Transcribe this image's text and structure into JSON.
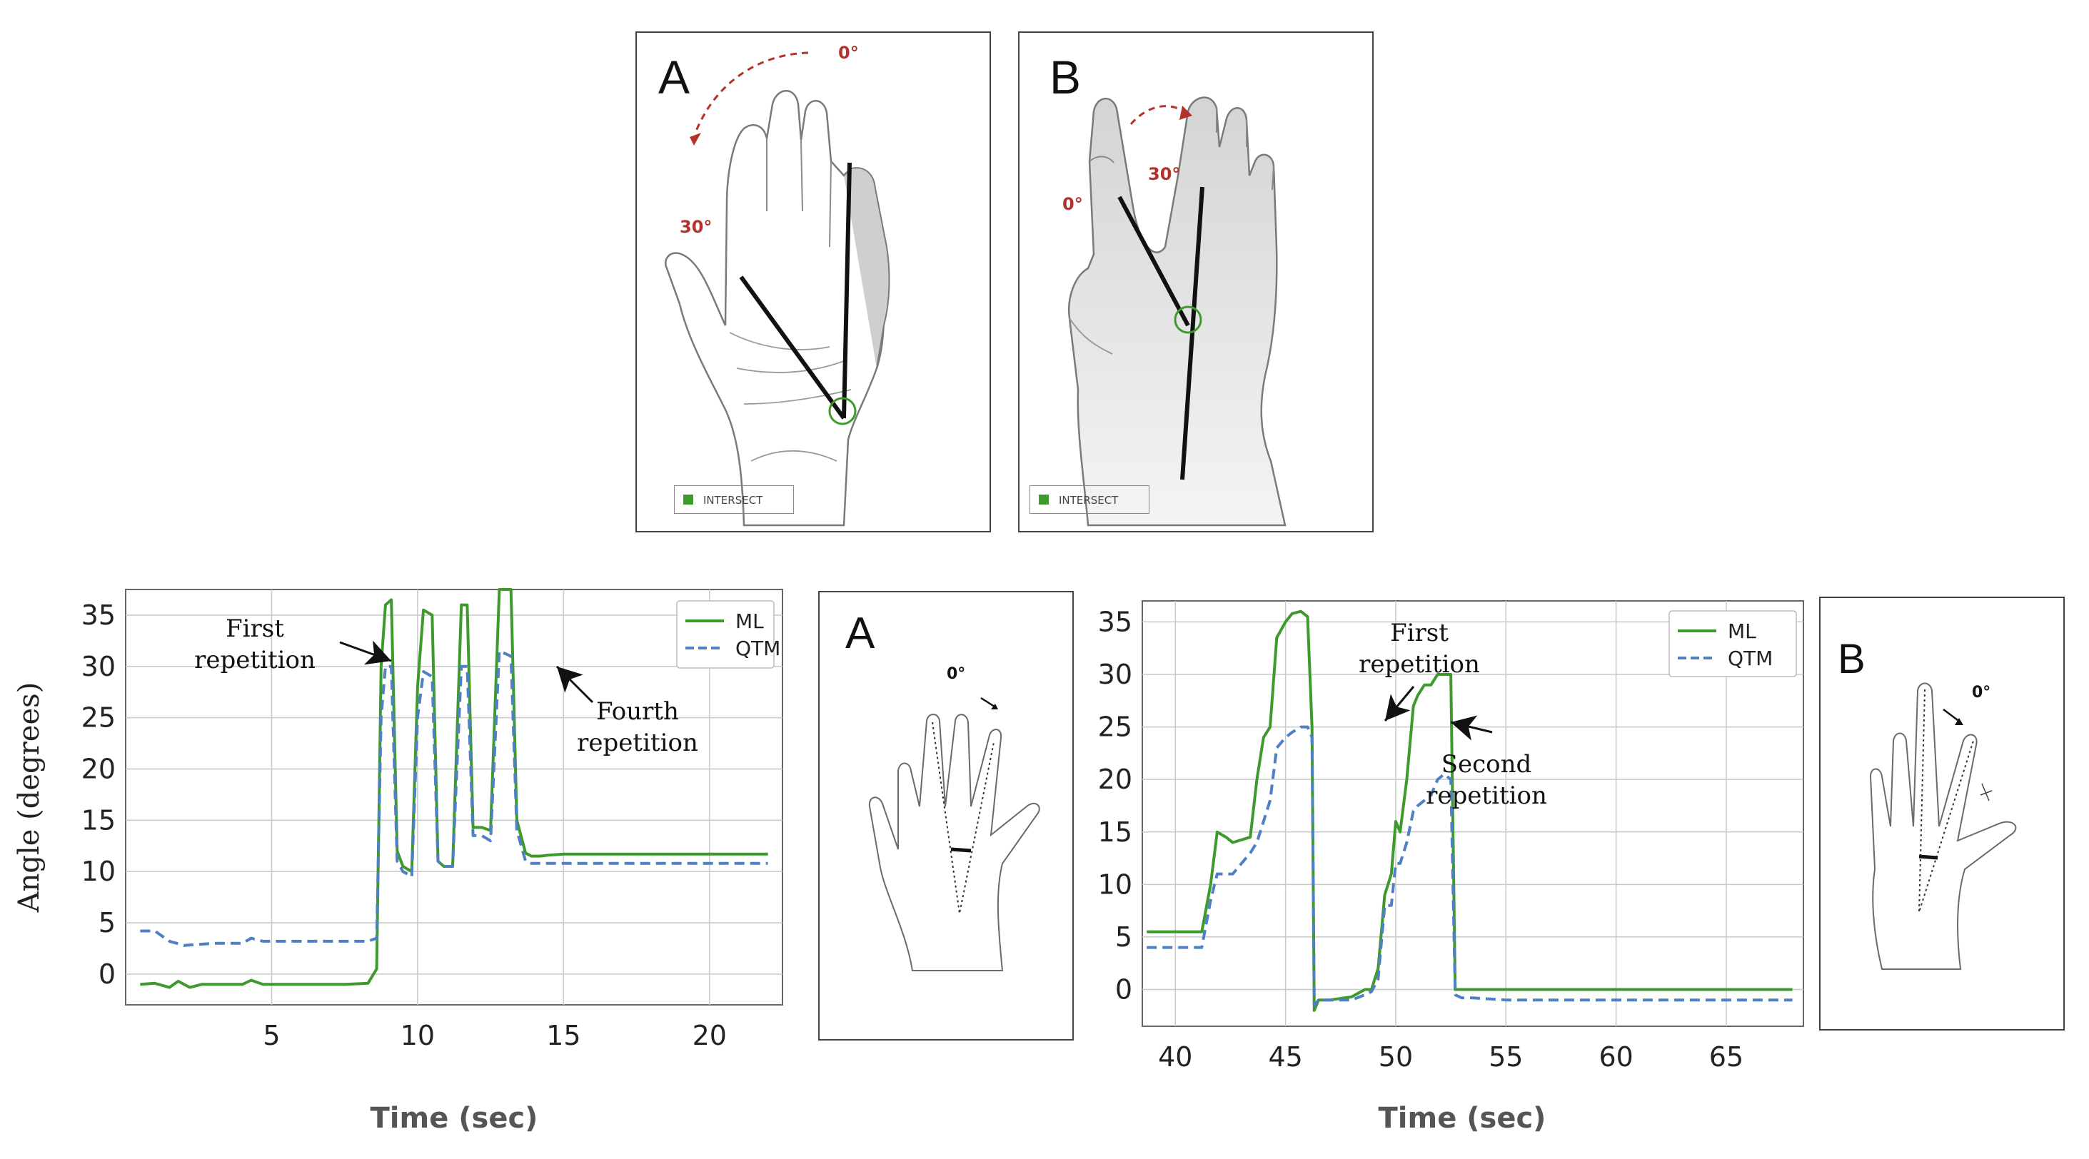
{
  "top_panels": [
    {
      "letter": "A",
      "angle_start": "0°",
      "angle_end": "30°",
      "legend": "INTERSECT"
    },
    {
      "letter": "B",
      "angle_start": "0°",
      "angle_end": "30°",
      "legend": "INTERSECT"
    }
  ],
  "insets": [
    {
      "letter": "A",
      "angle": "0°"
    },
    {
      "letter": "B",
      "angle": "0°"
    }
  ],
  "colors": {
    "ml": "#3f9a2e",
    "qtm": "#4f7fc4",
    "angle_marker": "#b5322a",
    "intersect": "#3f9a2e"
  },
  "chart_data": [
    {
      "type": "line",
      "xlabel": "Time (sec)",
      "ylabel": "Angle (degrees)",
      "xlim": [
        0,
        22.5
      ],
      "ylim": [
        -3,
        37.5
      ],
      "xticks": [
        5,
        10,
        15,
        20
      ],
      "yticks": [
        0,
        5,
        10,
        15,
        20,
        25,
        30,
        35
      ],
      "grid": true,
      "legend_position": "top-right",
      "annotations": [
        {
          "text": [
            "First",
            "repetition"
          ]
        },
        {
          "text": [
            "Fourth",
            "repetition"
          ]
        }
      ],
      "series": [
        {
          "name": "ML",
          "style": "solid",
          "x": [
            0.5,
            1,
            1.5,
            1.8,
            2.2,
            2.6,
            3,
            4,
            4.3,
            4.7,
            5.5,
            6.5,
            7.5,
            8.3,
            8.6,
            8.75,
            8.9,
            9.1,
            9.3,
            9.5,
            9.8,
            10,
            10.2,
            10.5,
            10.7,
            10.9,
            11.2,
            11.5,
            11.7,
            11.9,
            12.2,
            12.5,
            12.8,
            13.2,
            13.4,
            13.7,
            13.9,
            14.2,
            14.5,
            15,
            16,
            17,
            18,
            19,
            20,
            21,
            22
          ],
          "y": [
            -1,
            -0.9,
            -1.3,
            -0.7,
            -1.3,
            -1,
            -1,
            -1,
            -0.6,
            -1,
            -1,
            -1,
            -1,
            -0.9,
            0.5,
            30,
            36,
            36.5,
            12,
            10.5,
            10,
            28,
            35.5,
            35,
            11,
            10.5,
            10.5,
            36,
            36,
            14.3,
            14.3,
            14,
            37.5,
            37.5,
            15,
            11.8,
            11.5,
            11.5,
            11.6,
            11.7,
            11.7,
            11.7,
            11.7,
            11.7,
            11.7,
            11.7,
            11.7
          ]
        },
        {
          "name": "QTM",
          "style": "dashed",
          "x": [
            0.5,
            1,
            1.5,
            2,
            3,
            4,
            4.3,
            4.7,
            5.5,
            6.5,
            7.5,
            8.3,
            8.6,
            8.75,
            8.9,
            9.1,
            9.3,
            9.5,
            9.8,
            10,
            10.2,
            10.5,
            10.7,
            10.9,
            11.2,
            11.5,
            11.7,
            11.9,
            12.2,
            12.5,
            12.8,
            13.2,
            13.4,
            13.7,
            13.9,
            14.2,
            14.5,
            15,
            16,
            17,
            18,
            19,
            20,
            21,
            22
          ],
          "y": [
            4.2,
            4.2,
            3.2,
            2.8,
            3,
            3,
            3.5,
            3.2,
            3.2,
            3.2,
            3.2,
            3.2,
            3.5,
            25,
            30,
            30,
            11,
            10,
            9.5,
            25,
            29.5,
            29,
            11,
            10.5,
            10.5,
            30,
            30,
            13.5,
            13.5,
            13,
            31.5,
            31,
            14,
            11,
            10.8,
            10.8,
            10.8,
            10.8,
            10.8,
            10.8,
            10.8,
            10.8,
            10.8,
            10.8,
            10.8
          ]
        }
      ]
    },
    {
      "type": "line",
      "xlabel": "Time (sec)",
      "ylabel": "",
      "xlim": [
        38.5,
        68.5
      ],
      "ylim": [
        -3.5,
        37
      ],
      "xticks": [
        40,
        45,
        50,
        55,
        60,
        65
      ],
      "yticks": [
        0,
        5,
        10,
        15,
        20,
        25,
        30,
        35
      ],
      "grid": true,
      "legend_position": "top-right",
      "annotations": [
        {
          "text": [
            "First",
            "repetition"
          ]
        },
        {
          "text": [
            "Second",
            "repetition"
          ]
        }
      ],
      "series": [
        {
          "name": "ML",
          "style": "solid",
          "x": [
            38.7,
            40,
            41.2,
            41.6,
            41.9,
            42.3,
            42.6,
            43.4,
            43.7,
            44,
            44.3,
            44.6,
            45,
            45.3,
            45.7,
            46,
            46.2,
            46.3,
            46.5,
            47,
            48,
            48.6,
            48.9,
            49.2,
            49.5,
            49.8,
            50,
            50.2,
            50.5,
            50.8,
            51,
            51.3,
            51.6,
            51.9,
            52.2,
            52.5,
            52.7,
            53,
            53.5,
            55,
            60,
            65,
            68
          ],
          "y": [
            5.5,
            5.5,
            5.5,
            10,
            15,
            14.5,
            14,
            14.5,
            20,
            24,
            25,
            33.5,
            35,
            35.8,
            36,
            35.5,
            25,
            -2,
            -1,
            -1,
            -0.7,
            0,
            0,
            2,
            9,
            11,
            16,
            15,
            20,
            27,
            28,
            29,
            29,
            30,
            30,
            30,
            0,
            0,
            0,
            0,
            0,
            0,
            0
          ]
        },
        {
          "name": "QTM",
          "style": "dashed",
          "x": [
            38.7,
            40,
            41.2,
            41.6,
            41.9,
            42.3,
            42.6,
            43.4,
            43.7,
            44,
            44.3,
            44.6,
            45,
            45.3,
            45.7,
            46,
            46.2,
            46.3,
            46.5,
            47,
            48,
            48.6,
            48.9,
            49.2,
            49.5,
            49.8,
            50,
            50.2,
            50.5,
            50.8,
            51,
            51.3,
            51.6,
            51.9,
            52.2,
            52.5,
            52.7,
            53,
            53.5,
            55,
            60,
            65,
            68
          ],
          "y": [
            4,
            4,
            4,
            8.5,
            11,
            11,
            11,
            13,
            14,
            16,
            18,
            23,
            24,
            24.5,
            25,
            25,
            24,
            -1.5,
            -1,
            -1,
            -1,
            -0.5,
            -0.2,
            1,
            8,
            8,
            12,
            12,
            14,
            17,
            17.5,
            18,
            18.5,
            20,
            20.5,
            20,
            -0.5,
            -0.8,
            -0.8,
            -1,
            -1,
            -1,
            -1
          ]
        }
      ]
    }
  ]
}
